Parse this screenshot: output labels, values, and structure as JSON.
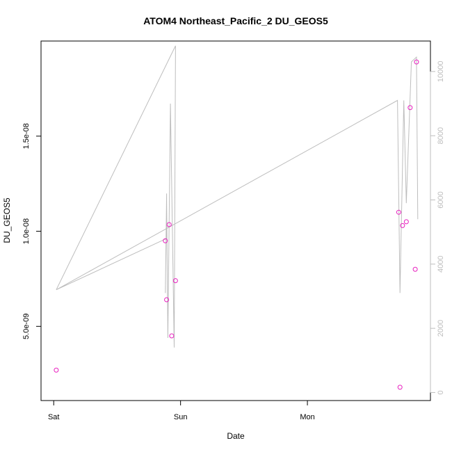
{
  "chart_data": {
    "type": "scatter",
    "title": "ATOM4 Northeast_Pacific_2 DU_GEOS5",
    "xlabel": "Date",
    "ylabel": "DU_GEOS5",
    "x_ticks": [
      {
        "label": "Sat",
        "value": 0
      },
      {
        "label": "Sun",
        "value": 1
      },
      {
        "label": "Mon",
        "value": 2
      }
    ],
    "y_left": {
      "range": [
        1.1e-09,
        2e-08
      ],
      "ticks": [
        {
          "label": "5.0e-09",
          "value": 5e-09
        },
        {
          "label": "1.0e-08",
          "value": 1e-08
        },
        {
          "label": "1.5e-08",
          "value": 1.5e-08
        }
      ]
    },
    "y_right": {
      "range": [
        -250,
        10950
      ],
      "ticks": [
        {
          "label": "0",
          "value": 0
        },
        {
          "label": "2000",
          "value": 2000
        },
        {
          "label": "4000",
          "value": 4000
        },
        {
          "label": "6000",
          "value": 6000
        },
        {
          "label": "8000",
          "value": 8000
        },
        {
          "label": "10000",
          "value": 10000
        }
      ]
    },
    "x_range": [
      -0.1,
      2.97
    ],
    "series": [
      {
        "kind": "points",
        "color": "#e81fbf",
        "axis": "left",
        "points": [
          {
            "x": 0.02,
            "y": 2.7e-09
          },
          {
            "x": 0.88,
            "y": 9.5e-09
          },
          {
            "x": 0.89,
            "y": 6.4e-09
          },
          {
            "x": 0.91,
            "y": 1.035e-08
          },
          {
            "x": 0.93,
            "y": 4.5e-09
          },
          {
            "x": 0.96,
            "y": 7.4e-09
          },
          {
            "x": 2.72,
            "y": 1.1e-08
          },
          {
            "x": 2.73,
            "y": 1.8e-09
          },
          {
            "x": 2.75,
            "y": 1.03e-08
          },
          {
            "x": 2.78,
            "y": 1.05e-08
          },
          {
            "x": 2.81,
            "y": 1.65e-08
          },
          {
            "x": 2.85,
            "y": 8e-09
          },
          {
            "x": 2.86,
            "y": 1.89e-08
          }
        ]
      },
      {
        "kind": "line",
        "color": "#bdbdbd",
        "axis": "right",
        "points": [
          {
            "x": 0.02,
            "y": 3200
          },
          {
            "x": 0.96,
            "y": 10800
          },
          {
            "x": 0.95,
            "y": 1400
          },
          {
            "x": 0.92,
            "y": 9000
          },
          {
            "x": 0.9,
            "y": 1700
          },
          {
            "x": 0.89,
            "y": 6000
          },
          {
            "x": 0.88,
            "y": 3100
          },
          {
            "x": 0.89,
            "y": 6200
          },
          {
            "x": 0.89,
            "y": 4800
          },
          {
            "x": 0.02,
            "y": 3200
          },
          {
            "x": 2.71,
            "y": 9100
          },
          {
            "x": 2.73,
            "y": 3100
          },
          {
            "x": 2.76,
            "y": 9100
          },
          {
            "x": 2.78,
            "y": 5900
          },
          {
            "x": 2.82,
            "y": 10300
          },
          {
            "x": 2.86,
            "y": 10450
          },
          {
            "x": 2.87,
            "y": 5400
          }
        ]
      }
    ]
  }
}
